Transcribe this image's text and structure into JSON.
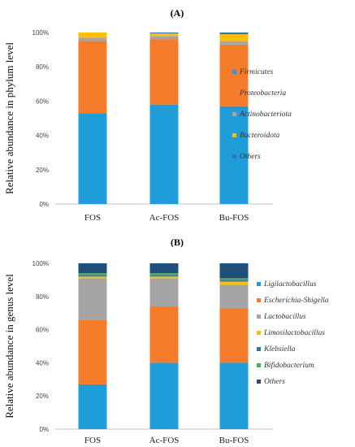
{
  "chart_data": [
    {
      "type": "bar",
      "stacked": true,
      "panel_label": "(A)",
      "ylabel": "Relative abundance in phylum level",
      "categories": [
        "FOS",
        "Ac-FOS",
        "Bu-FOS"
      ],
      "ylim": [
        0,
        100
      ],
      "yticks": [
        "0%",
        "20%",
        "40%",
        "60%",
        "80%",
        "100%"
      ],
      "legend_position": "right",
      "series": [
        {
          "name": "Firmicutes",
          "color": "#1f9dd9",
          "values": [
            53,
            58,
            57
          ]
        },
        {
          "name": "Proteobacteria",
          "color": "#f47c2a",
          "values": [
            42,
            38,
            36
          ]
        },
        {
          "name": "Actinobacteriota",
          "color": "#a5a5a5",
          "values": [
            2,
            2,
            2
          ]
        },
        {
          "name": "Bacteroidota",
          "color": "#ffc000",
          "values": [
            3,
            1.5,
            4
          ]
        },
        {
          "name": "Others",
          "color": "#2e75b6",
          "values": [
            0,
            0.5,
            1
          ]
        }
      ]
    },
    {
      "type": "bar",
      "stacked": true,
      "panel_label": "(B)",
      "ylabel": "Relative abundance in genus level",
      "categories": [
        "FOS",
        "Ac-FOS",
        "Bu-FOS"
      ],
      "ylim": [
        0,
        100
      ],
      "yticks": [
        "0%",
        "20%",
        "40%",
        "60%",
        "80%",
        "100%"
      ],
      "legend_position": "right",
      "series": [
        {
          "name": "Ligilactobacillus",
          "color": "#1f9dd9",
          "values": [
            27,
            40,
            40
          ]
        },
        {
          "name": "Escherichia-Shigella",
          "color": "#f47c2a",
          "values": [
            39,
            34,
            33
          ]
        },
        {
          "name": "Lactobacillus",
          "color": "#a5a5a5",
          "values": [
            25,
            17,
            14
          ]
        },
        {
          "name": "Limosilactobacillus",
          "color": "#ffc000",
          "values": [
            1,
            1,
            2
          ]
        },
        {
          "name": "Klebsiella",
          "color": "#2e75b6",
          "values": [
            1,
            1,
            1
          ]
        },
        {
          "name": "Bifidobacterium",
          "color": "#4caf50",
          "values": [
            1,
            1,
            1
          ]
        },
        {
          "name": "Others",
          "color": "#1f4e79",
          "values": [
            6,
            6,
            9
          ]
        }
      ]
    }
  ]
}
